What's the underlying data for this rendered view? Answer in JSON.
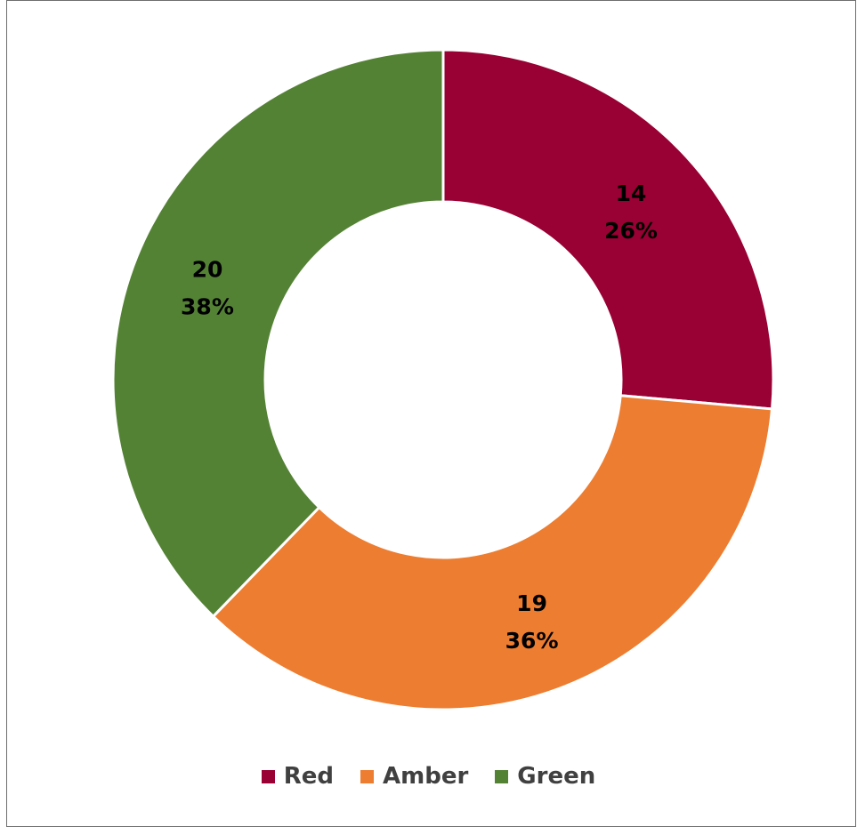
{
  "chart_data": {
    "type": "pie",
    "subtype": "donut",
    "title": "",
    "legend_position": "bottom",
    "data_labels": [
      "value",
      "percent"
    ],
    "slices": [
      {
        "label": "Red",
        "value": 14,
        "percent_label": "26%",
        "color": "#990033"
      },
      {
        "label": "Amber",
        "value": 19,
        "percent_label": "36%",
        "color": "#ED7D31"
      },
      {
        "label": "Green",
        "value": 20,
        "percent_label": "38%",
        "color": "#548235"
      }
    ]
  }
}
